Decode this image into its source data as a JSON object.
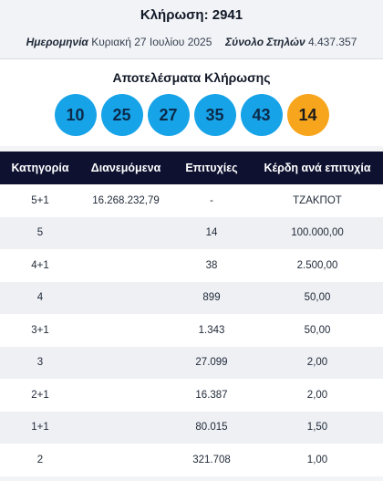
{
  "header": {
    "draw_title": "Κλήρωση: 2941",
    "date_label": "Ημερομηνία",
    "date_value": "Κυριακή 27 Ιουλίου 2025",
    "columns_label": "Σύνολο Στηλών",
    "columns_value": "4.437.357"
  },
  "results": {
    "title": "Αποτελέσματα Κλήρωσης",
    "numbers": [
      "10",
      "25",
      "27",
      "35",
      "43"
    ],
    "bonus": "14",
    "colors": {
      "main": "#17a3e8",
      "bonus": "#f7a51c"
    }
  },
  "table": {
    "headers": [
      "Κατηγορία",
      "Διανεμόμενα",
      "Επιτυχίες",
      "Κέρδη ανά επιτυχία"
    ],
    "rows": [
      [
        "5+1",
        "16.268.232,79",
        "-",
        "ΤΖΑΚΠΟΤ"
      ],
      [
        "5",
        "",
        "14",
        "100.000,00"
      ],
      [
        "4+1",
        "",
        "38",
        "2.500,00"
      ],
      [
        "4",
        "",
        "899",
        "50,00"
      ],
      [
        "3+1",
        "",
        "1.343",
        "50,00"
      ],
      [
        "3",
        "",
        "27.099",
        "2,00"
      ],
      [
        "2+1",
        "",
        "16.387",
        "2,00"
      ],
      [
        "1+1",
        "",
        "80.015",
        "1,50"
      ],
      [
        "2",
        "",
        "321.708",
        "1,00"
      ]
    ]
  }
}
